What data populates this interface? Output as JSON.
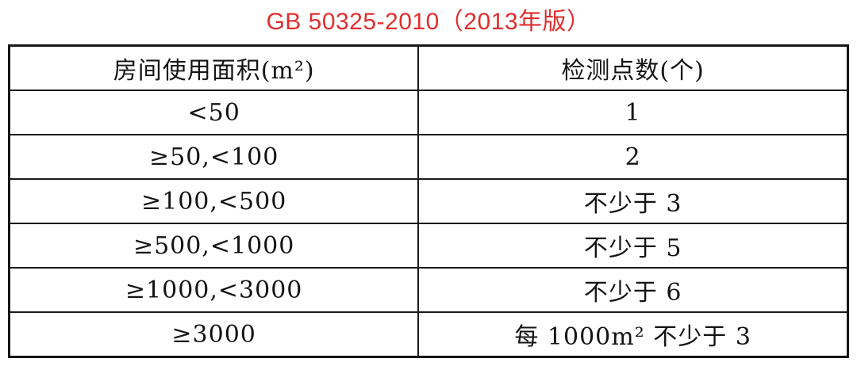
{
  "title": "GB 50325-2010（2013年版）",
  "accent_color": "#e02e2e",
  "table": {
    "columns": [
      {
        "label": "房间使用面积(m²)"
      },
      {
        "label": "检测点数(个)"
      }
    ],
    "rows": [
      {
        "area": "<50",
        "points": "1"
      },
      {
        "area": "≥50,<100",
        "points": "2"
      },
      {
        "area": "≥100,<500",
        "points": "不少于 3"
      },
      {
        "area": "≥500,<1000",
        "points": "不少于 5"
      },
      {
        "area": "≥1000,<3000",
        "points": "不少于 6"
      },
      {
        "area": "≥3000",
        "points": "每 1000m² 不少于 3"
      }
    ]
  }
}
